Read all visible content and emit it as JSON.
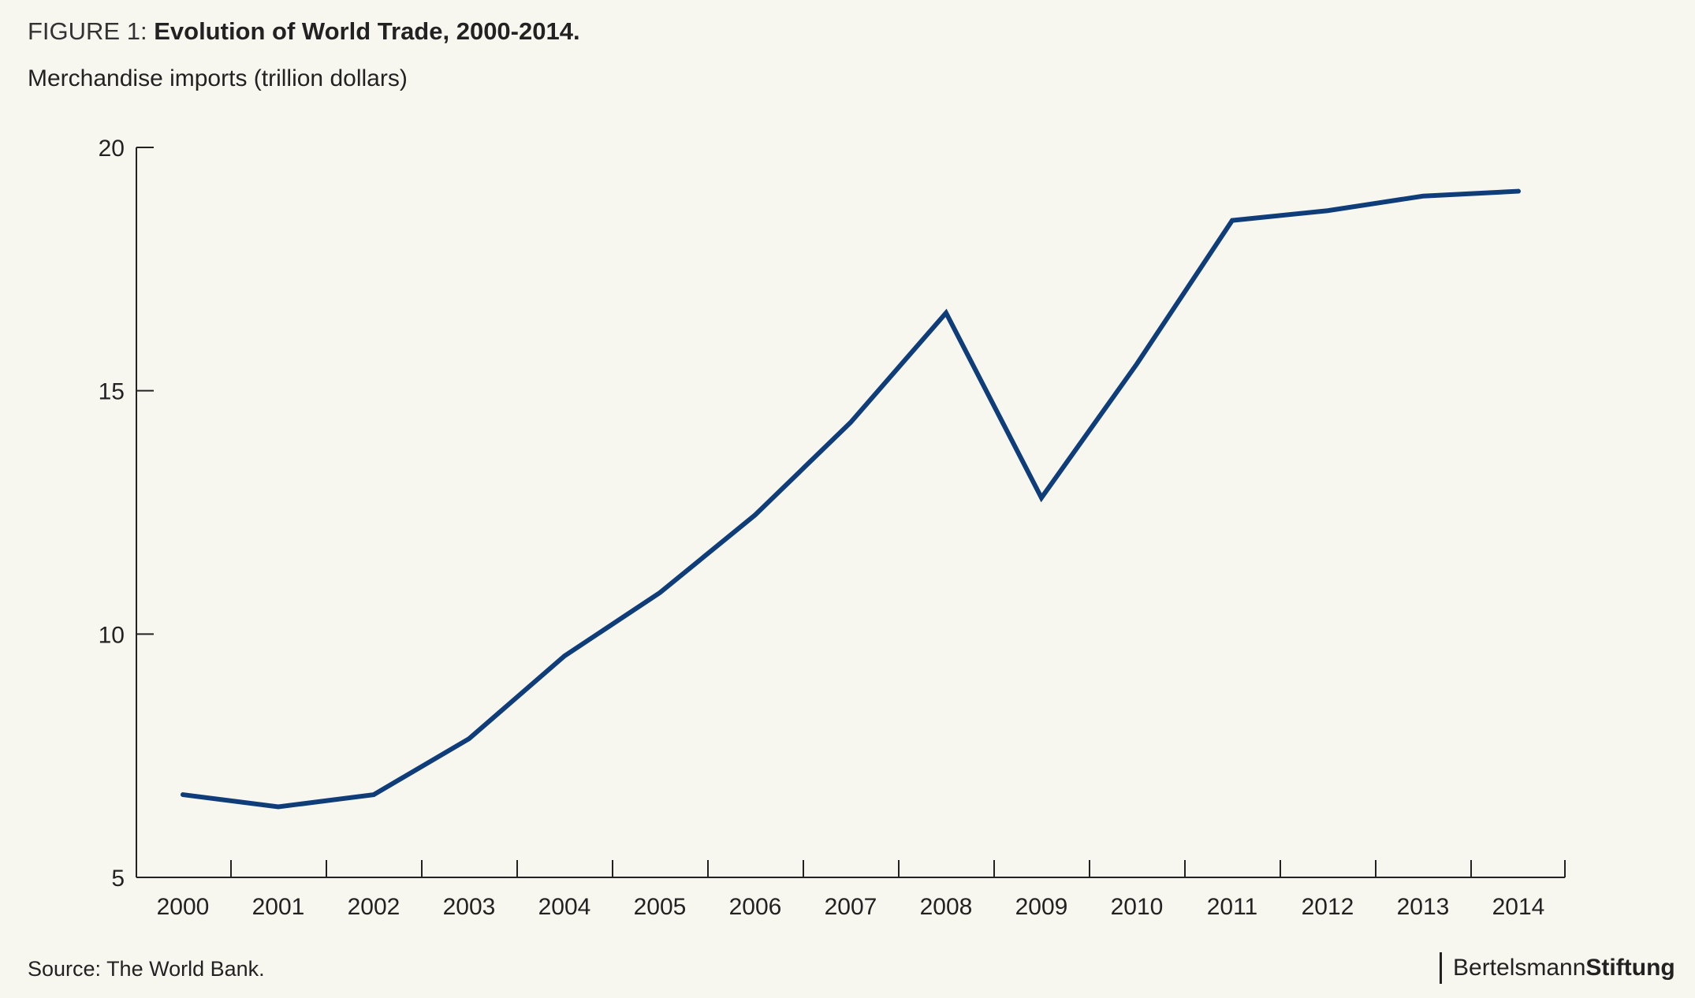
{
  "figure_label": "FIGURE 1:",
  "figure_title": "Evolution of World Trade, 2000-2014.",
  "subtitle": "Merchandise imports (trillion dollars)",
  "source": "Source: The World Bank.",
  "brand": {
    "part1": "Bertelsmann",
    "part2": "Stiftung"
  },
  "colors": {
    "line": "#0f3d7a",
    "background": "#f8f7ef",
    "axis": "#222222"
  },
  "chart_data": {
    "type": "line",
    "title": "Evolution of World Trade, 2000-2014.",
    "ylabel": "Merchandise imports (trillion dollars)",
    "xlabel": "",
    "x": [
      "2000",
      "2001",
      "2002",
      "2003",
      "2004",
      "2005",
      "2006",
      "2007",
      "2008",
      "2009",
      "2010",
      "2011",
      "2012",
      "2013",
      "2014"
    ],
    "series": [
      {
        "values": [
          6.7,
          6.45,
          6.7,
          7.85,
          9.55,
          10.85,
          12.45,
          14.35,
          16.6,
          12.8,
          15.55,
          18.5,
          18.7,
          19.0,
          19.1
        ]
      }
    ],
    "ylim": [
      5,
      20
    ],
    "yticks": [
      5,
      10,
      15,
      20
    ],
    "grid": false,
    "legend": "none"
  }
}
